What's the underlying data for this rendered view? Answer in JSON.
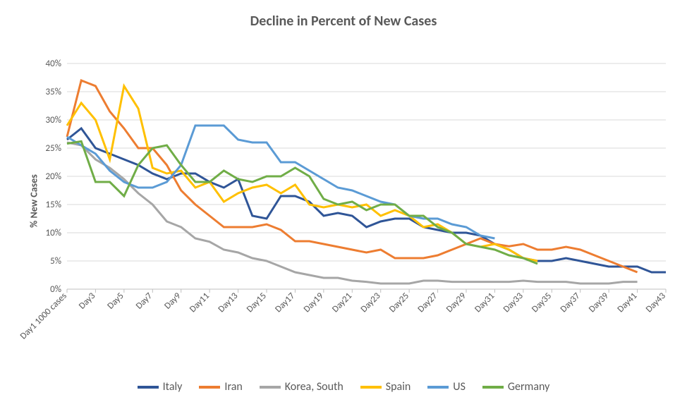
{
  "chart": {
    "type": "line",
    "title": "Decline in Percent of New Cases",
    "title_fontsize": 20,
    "title_color": "#595959",
    "y_axis_label": "% New Cases",
    "y_axis_label_fontsize": 14,
    "background_color": "#ffffff",
    "grid_color": "#d9d9d9",
    "axis_color": "#bfbfbf",
    "tick_label_color": "#595959",
    "tick_fontsize": 13,
    "legend_fontsize": 16,
    "line_width": 3,
    "ylim": [
      0,
      40
    ],
    "ytick_step": 5,
    "yticks": [
      0,
      5,
      10,
      15,
      20,
      25,
      30,
      35,
      40
    ],
    "ytick_labels": [
      "0%",
      "5%",
      "10%",
      "15%",
      "20%",
      "25%",
      "30%",
      "35%",
      "40%"
    ],
    "x_categories": [
      "Day1 1000 cases",
      "Day3",
      "Day5",
      "Day7",
      "Day9",
      "Day11",
      "Day13",
      "Day15",
      "Day17",
      "Day19",
      "Day21",
      "Day23",
      "Day25",
      "Day27",
      "Day29",
      "Day31",
      "Day33",
      "Day35",
      "Day37",
      "Day39",
      "Day41",
      "Day43"
    ],
    "x_label_rotation": -45,
    "series": [
      {
        "name": "Italy",
        "color": "#2f5597",
        "values": [
          26.5,
          28.5,
          25,
          24,
          23,
          22,
          20.5,
          19.5,
          20.5,
          20.5,
          19,
          18,
          19.5,
          13,
          12.5,
          16.5,
          16.5,
          15.5,
          13,
          13.5,
          13,
          11,
          12,
          12.5,
          12.5,
          11,
          10.5,
          10,
          10,
          9.5,
          8,
          7,
          5.5,
          5,
          5,
          5.5,
          5,
          4.5,
          4,
          4,
          4,
          3,
          3
        ]
      },
      {
        "name": "Iran",
        "color": "#ed7d31",
        "values": [
          27,
          37,
          36,
          31.5,
          28.5,
          25,
          25,
          22,
          17.5,
          15,
          13,
          11,
          11,
          11,
          11.5,
          10.5,
          8.5,
          8.5,
          8,
          7.5,
          7,
          6.5,
          7,
          5.5,
          5.5,
          5.5,
          6,
          7,
          8,
          9,
          8,
          7.6,
          8,
          7,
          7,
          7.5,
          7,
          6,
          5,
          4,
          3
        ]
      },
      {
        "name": "Korea, South",
        "color": "#a6a6a6",
        "values": [
          26,
          25.5,
          23,
          21.5,
          19.5,
          17,
          15,
          12,
          11,
          9,
          8.4,
          7,
          6.5,
          5.5,
          5,
          4,
          3,
          2.5,
          2,
          2,
          1.5,
          1.3,
          1,
          1,
          1,
          1.5,
          1.5,
          1.3,
          1.3,
          1.3,
          1.3,
          1.3,
          1.5,
          1.3,
          1.3,
          1.3,
          1,
          1,
          1,
          1.3,
          1.3
        ]
      },
      {
        "name": "Spain",
        "color": "#ffc000",
        "values": [
          29,
          33,
          30,
          23,
          36,
          32,
          21.5,
          20.5,
          21,
          18,
          19,
          15.5,
          17,
          18,
          18.5,
          17,
          18.5,
          15,
          14.5,
          15,
          14.5,
          15,
          13,
          14,
          13,
          11,
          11.5,
          10,
          8,
          7.5,
          8,
          7,
          5.5,
          5
        ]
      },
      {
        "name": "US",
        "color": "#5b9bd5",
        "values": [
          27,
          25.5,
          24,
          21,
          19,
          18,
          18,
          19,
          22,
          29,
          29,
          29,
          26.5,
          26,
          26,
          22.5,
          22.5,
          21,
          19.5,
          18,
          17.5,
          16.5,
          15.5,
          15,
          13,
          12.5,
          12.5,
          11.5,
          11,
          9.5,
          9
        ]
      },
      {
        "name": "Germany",
        "color": "#70ad47",
        "values": [
          25.8,
          26.2,
          19,
          19,
          16.5,
          22,
          25,
          25.5,
          22,
          19,
          19,
          21,
          19.5,
          19,
          20,
          20,
          21.5,
          20,
          16,
          15,
          15.5,
          14,
          15,
          15,
          13,
          13,
          11,
          10,
          8,
          7.5,
          7,
          6,
          5.5,
          4.5
        ]
      }
    ]
  }
}
